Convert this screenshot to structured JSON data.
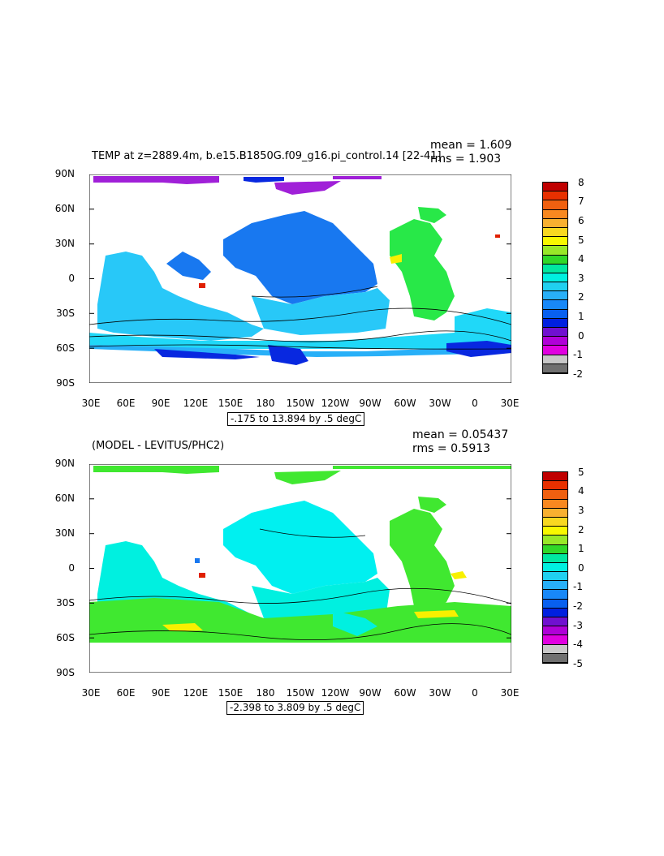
{
  "panels": [
    {
      "title": "TEMP at z=2889.4m, b.e15.B1850G.f09_g16.pi_control.14 [22-41]",
      "mean": "mean = 1.609",
      "rms": "rms = 1.903",
      "range": "-.175 to 13.894 by .5 degC",
      "y_ticks": [
        "90N",
        "60N",
        "30N",
        "0",
        "30S",
        "60S",
        "90S"
      ],
      "x_ticks": [
        "30E",
        "60E",
        "90E",
        "120E",
        "150E",
        "180",
        "150W",
        "120W",
        "90W",
        "60W",
        "30W",
        "0",
        "30E"
      ],
      "colorbar": {
        "labels": [
          "8",
          "7",
          "6",
          "5",
          "4",
          "3",
          "2",
          "1",
          "0",
          "-1",
          "-2"
        ],
        "colors": [
          "#c00000",
          "#e83000",
          "#f06010",
          "#f88820",
          "#f8b030",
          "#f8d820",
          "#f8f800",
          "#98e828",
          "#30d828",
          "#00e8a0",
          "#00f0e0",
          "#20d0f0",
          "#28b0f8",
          "#1888f8",
          "#0860f0",
          "#0020e0",
          "#7010d0",
          "#b000d8",
          "#e000e0",
          "#c8c8c8",
          "#707070"
        ]
      },
      "map_fields": {
        "pacific": "#1878f0",
        "indian": "#28c8f8",
        "southern_band": "#20d8f8",
        "antarctic_coast": "#0828e0",
        "atlantic": "#28e848",
        "arctic": "#a020d8"
      }
    },
    {
      "title": "(MODEL - LEVITUS/PHC2)",
      "mean": "mean = 0.05437",
      "rms": "rms = 0.5913",
      "range": "-2.398 to 3.809 by .5 degC",
      "y_ticks": [
        "90N",
        "60N",
        "30N",
        "0",
        "30S",
        "60S",
        "90S"
      ],
      "x_ticks": [
        "30E",
        "60E",
        "90E",
        "120E",
        "150E",
        "180",
        "150W",
        "120W",
        "90W",
        "60W",
        "30W",
        "0",
        "30E"
      ],
      "colorbar": {
        "labels": [
          "5",
          "4",
          "3",
          "2",
          "1",
          "0",
          "-1",
          "-2",
          "-3",
          "-4",
          "-5"
        ],
        "colors": [
          "#c00000",
          "#e83000",
          "#f06010",
          "#f88820",
          "#f8b030",
          "#f8d820",
          "#f8f800",
          "#98e828",
          "#30d828",
          "#00e8a0",
          "#00f0e0",
          "#20d0f0",
          "#28b0f8",
          "#1888f8",
          "#0860f0",
          "#0020e0",
          "#7010d0",
          "#b000d8",
          "#e000e0",
          "#c8c8c8",
          "#707070"
        ]
      },
      "map_fields": {
        "pacific": "#00f0f0",
        "indian": "#00f0e0",
        "southern_band": "#40e830",
        "yellow_patch": "#f8f000",
        "atlantic": "#40e830",
        "arctic": "#40e830"
      }
    }
  ]
}
